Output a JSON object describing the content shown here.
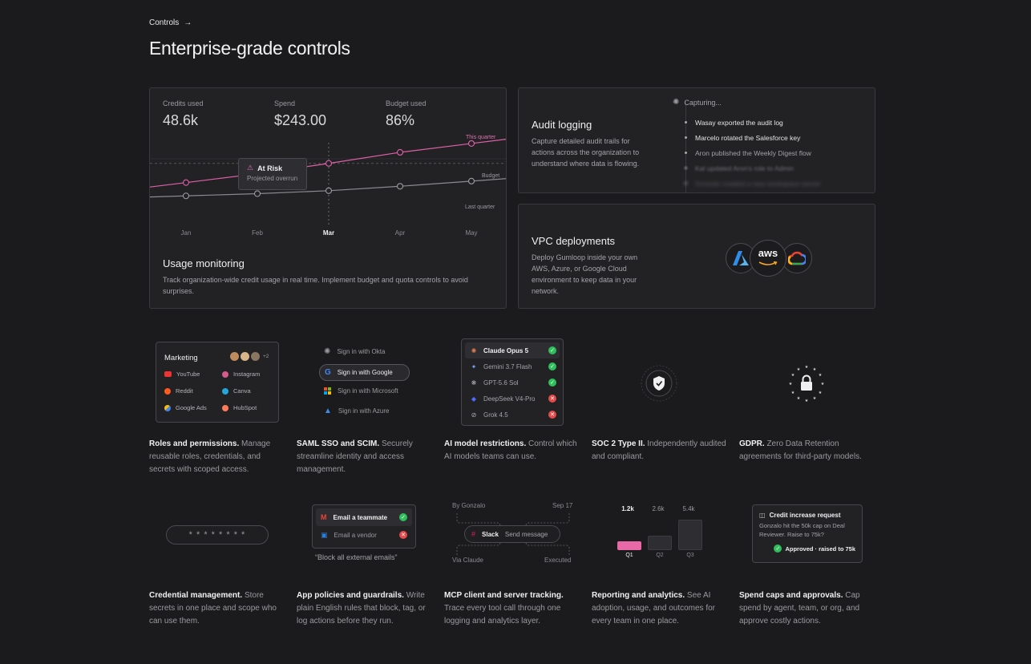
{
  "breadcrumb": {
    "label": "Controls",
    "arrow": "→"
  },
  "heading": "Enterprise-grade controls",
  "usage": {
    "stats": [
      {
        "label": "Credits used",
        "value": "48.6k"
      },
      {
        "label": "Spend",
        "value": "$243.00"
      },
      {
        "label": "Budget used",
        "value": "86%"
      }
    ],
    "chart_data": {
      "type": "line",
      "categories": [
        "Jan",
        "Feb",
        "Mar",
        "Apr",
        "May"
      ],
      "highlighted_category": "Mar",
      "series": [
        {
          "name": "This quarter",
          "color": "#e060a8",
          "values": [
            0.46,
            0.58,
            0.72,
            0.87,
            0.99
          ]
        },
        {
          "name": "Last quarter",
          "color": "#8a8a90",
          "values": [
            0.28,
            0.31,
            0.35,
            0.41,
            0.48
          ]
        }
      ],
      "reference_lines": [
        {
          "name": "Budget",
          "value": 0.72
        }
      ],
      "grid": true
    },
    "tooltip": {
      "title": "At Risk",
      "subtitle": "Projected overrun"
    },
    "label_this_quarter": "This quarter",
    "label_budget": "Budget",
    "label_last_quarter": "Last quarter",
    "title": "Usage monitoring",
    "desc": "Track organization-wide credit usage in real time. Implement budget and quota controls to avoid surprises."
  },
  "audit": {
    "title": "Audit logging",
    "desc": "Capture detailed audit trails for actions across the organization to understand where data is flowing.",
    "status": "Capturing...",
    "items": [
      "Wasay exported the audit log",
      "Marcelo rotated the Salesforce key",
      "Aron published the Weekly Digest flow",
      "Kal updated Aron's role to Admin",
      "Gonzalo created a new workspace secret"
    ]
  },
  "vpc": {
    "title": "VPC deployments",
    "desc": "Deploy Gumloop inside your own AWS, Azure, or Google Cloud environment to keep data in your network.",
    "aws": "aws",
    "icons": [
      "azure-logo",
      "aws-logo",
      "google-cloud-logo"
    ]
  },
  "roles": {
    "group": "Marketing",
    "extra": "+2",
    "apps": [
      "YouTube",
      "Instagram",
      "Reddit",
      "Canva",
      "Google Ads",
      "HubSpot"
    ],
    "title": "Roles and permissions.",
    "desc": "Manage reusable roles, credentials, and secrets with scoped access."
  },
  "sso": {
    "options": [
      "Sign in with Okta",
      "Sign in with Google",
      "Sign in with Microsoft",
      "Sign in with Azure"
    ],
    "title": "SAML SSO and SCIM.",
    "desc": "Securely streamline identity and access management."
  },
  "models": {
    "list": [
      {
        "name": "Claude Opus 5",
        "allowed": true
      },
      {
        "name": "Gemini 3.7 Flash",
        "allowed": true
      },
      {
        "name": "GPT-5.6 Sol",
        "allowed": true
      },
      {
        "name": "DeepSeek V4-Pro",
        "allowed": false
      },
      {
        "name": "Grok 4.5",
        "allowed": false
      }
    ],
    "title": "AI model restrictions.",
    "desc": "Control which AI models teams can use."
  },
  "soc": {
    "title": "SOC 2 Type II.",
    "desc": "Independently audited and compliant."
  },
  "gdpr": {
    "title": "GDPR.",
    "desc": "Zero Data Retention agreements for third-party models."
  },
  "cred": {
    "mask": "* * * * * * * *",
    "title": "Credential management.",
    "desc": "Store secrets in one place and scope who can use them."
  },
  "policies": {
    "rules": [
      {
        "label": "Email a teammate",
        "allowed": true
      },
      {
        "label": "Email a vendor",
        "allowed": false
      }
    ],
    "quote": "“Block all external emails”",
    "title": "App policies and guardrails.",
    "desc": "Write plain English rules that block, tag, or log actions before they run."
  },
  "mcp": {
    "by": "By Gonzalo",
    "date": "Sep 17",
    "app": "Slack",
    "action": "Send message",
    "via": "Via Claude",
    "status": "Executed",
    "title": "MCP client and server tracking.",
    "desc": "Trace every tool call through one logging and analytics layer."
  },
  "reporting": {
    "chart_data": {
      "type": "bar",
      "categories": [
        "Q1",
        "Q2",
        "Q3"
      ],
      "values": [
        1200,
        2600,
        5400
      ],
      "value_labels": [
        "1.2k",
        "2.6k",
        "5.4k"
      ],
      "highlight": "Q1",
      "highlight_color": "#e868a8"
    },
    "title": "Reporting and analytics.",
    "desc": "See AI adoption, usage, and outcomes for every team in one place."
  },
  "spend": {
    "request_title": "Credit increase request",
    "request_body": "Gonzalo hit the 50k cap on Deal Reviewer. Raise to 75k?",
    "approved": "Approved · raised to 75k",
    "title": "Spend caps and approvals.",
    "desc": "Cap spend by agent, team, or org, and approve costly actions."
  }
}
